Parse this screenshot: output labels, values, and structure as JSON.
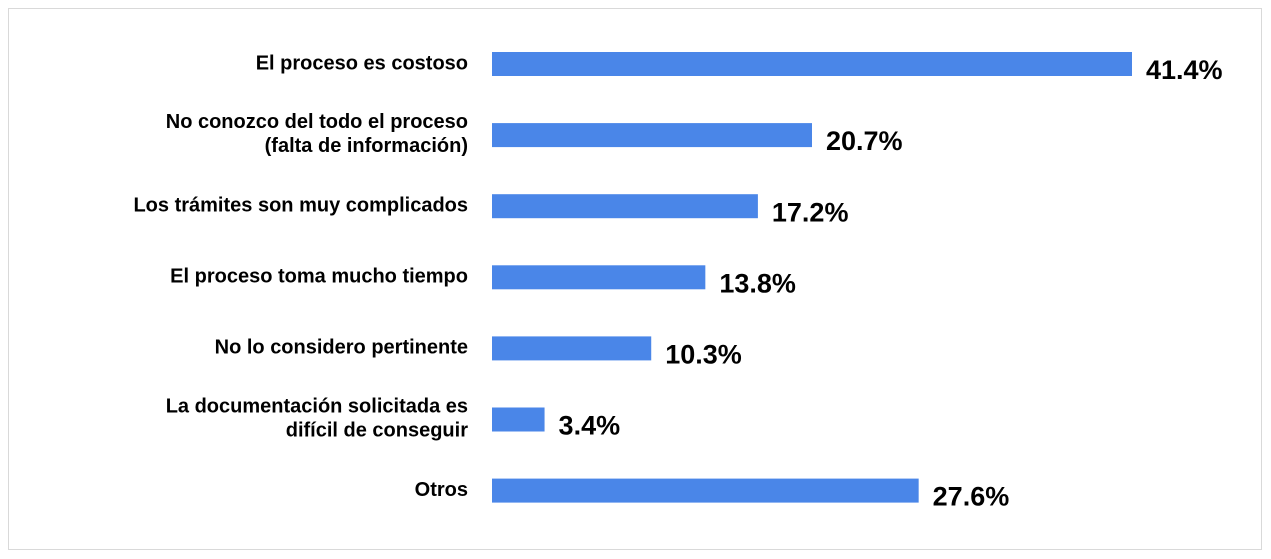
{
  "chart_data": {
    "type": "barh",
    "categories": [
      "El proceso es costoso",
      "No conozco del todo el proceso\n(falta de información)",
      "Los trámites son muy complicados",
      "El proceso toma mucho tiempo",
      "No lo considero pertinente",
      "La documentación solicitada es\ndifícil de conseguir",
      "Otros"
    ],
    "values": [
      41.4,
      20.7,
      17.2,
      13.8,
      10.3,
      3.4,
      27.6
    ],
    "value_labels": [
      "41.4%",
      "20.7%",
      "17.2%",
      "13.8%",
      "10.3%",
      "3.4%",
      "27.6%"
    ],
    "color": "#4a86e8"
  }
}
